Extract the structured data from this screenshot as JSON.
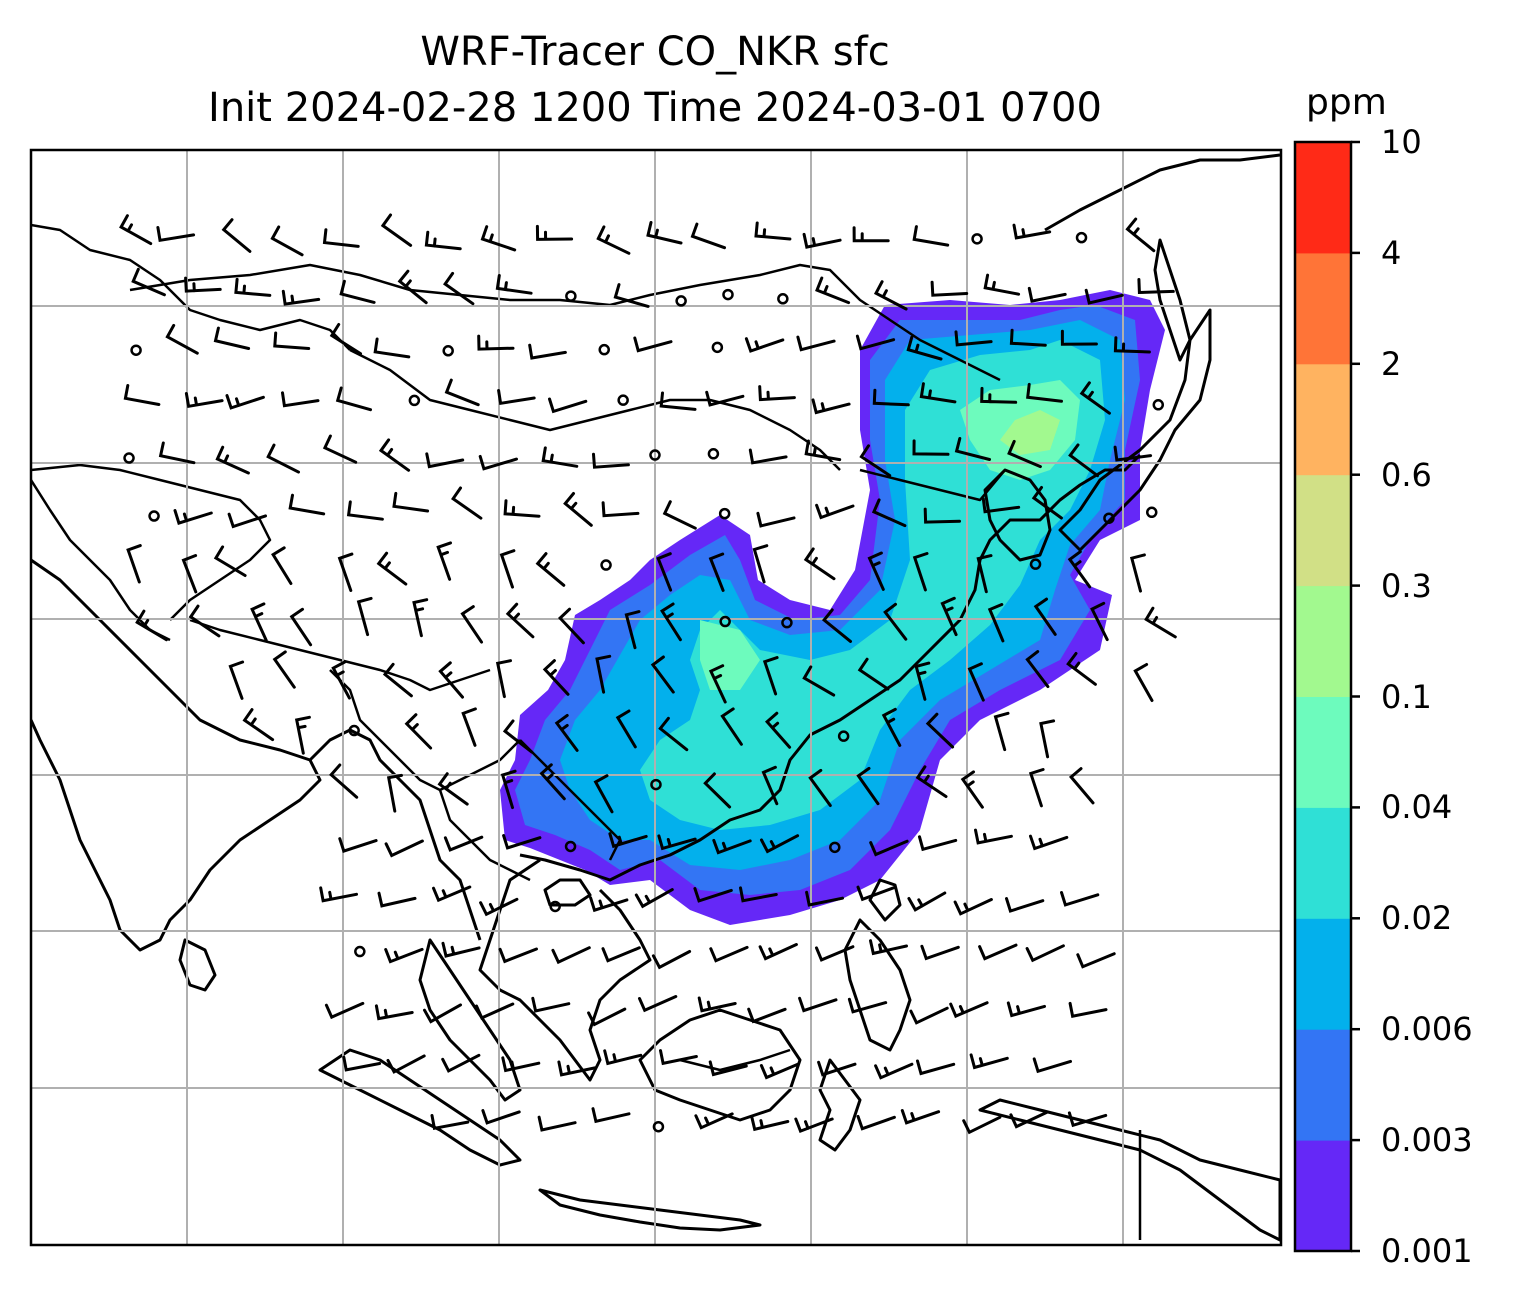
{
  "title": {
    "line1": "WRF-Tracer CO_NKR sfc",
    "line2": "Init 2024-02-28 1200 Time 2024-03-01 0700"
  },
  "colorbar": {
    "unit": "ppm",
    "levels": [
      "0.001",
      "0.003",
      "0.006",
      "0.02",
      "0.04",
      "0.1",
      "0.3",
      "0.6",
      "2",
      "4",
      "10"
    ],
    "colors": [
      "#6528f7",
      "#3375f4",
      "#03b0ec",
      "#2fe0d6",
      "#6dfbbd",
      "#a2f98f",
      "#d1e086",
      "#ffb360",
      "#ff7437",
      "#ff2a17"
    ]
  },
  "map": {
    "gridlines": true,
    "wind_barbs": true,
    "calm_marker": "circle"
  }
}
